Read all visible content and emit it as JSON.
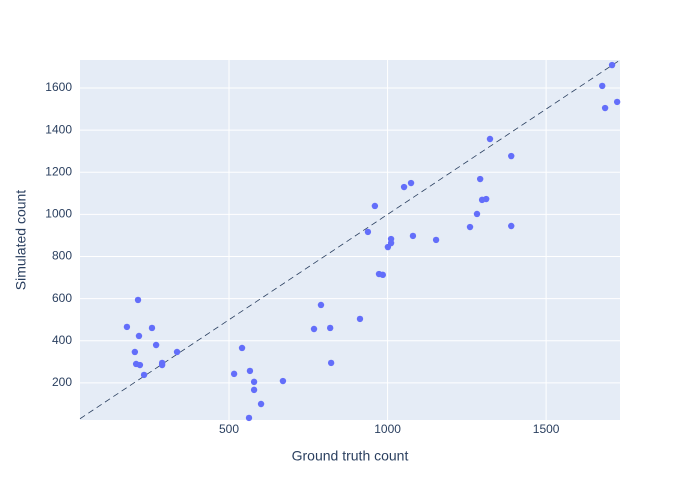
{
  "chart_data": {
    "type": "scatter",
    "x_label": "Ground truth count",
    "y_label": "Simulated count",
    "xlim": [
      30,
      1733
    ],
    "ylim": [
      24,
      1733
    ],
    "xticks": [
      500,
      1000,
      1500
    ],
    "yticks": [
      200,
      400,
      600,
      800,
      1000,
      1200,
      1400,
      1600
    ],
    "grid": true,
    "background": "#e5ecf6",
    "reference_line": true,
    "series": [
      {
        "color": "#636efa",
        "x": [
          178,
          213,
          203,
          216,
          257,
          270,
          207,
          219,
          232,
          289,
          289,
          336,
          516,
          541,
          566,
          579,
          579,
          601,
          563,
          670,
          790,
          768,
          819,
          822,
          913,
          938,
          960,
          973,
          985,
          1001,
          1011,
          1011,
          1052,
          1074,
          1080,
          1153,
          1260,
          1282,
          1292,
          1298,
          1311,
          1323,
          1390,
          1390,
          1677,
          1686,
          1708,
          1724
        ],
        "values": [
          466,
          594,
          347,
          423,
          461,
          380,
          290,
          285,
          238,
          295,
          285,
          347,
          243,
          366,
          257,
          205,
          167,
          100,
          34,
          209,
          570,
          456,
          461,
          295,
          504,
          917,
          1040,
          717,
          713,
          845,
          883,
          864,
          1130,
          1149,
          898,
          879,
          940,
          1002,
          1168,
          1069,
          1073,
          1358,
          1277,
          945,
          1610,
          1505,
          1709,
          1534
        ]
      }
    ]
  }
}
